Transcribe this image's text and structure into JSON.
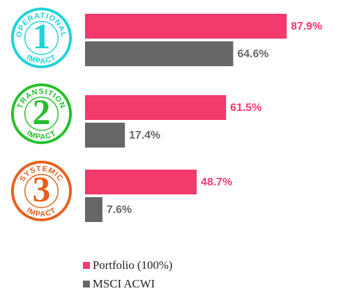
{
  "chart_data": {
    "type": "bar",
    "orientation": "horizontal",
    "categories": [
      "1",
      "2",
      "3"
    ],
    "category_top_labels": [
      "OPERATIONAL",
      "TRANSITION",
      "SYSTEMIC"
    ],
    "category_bottom_labels": [
      "IMPACT",
      "IMPACT",
      "IMPACT"
    ],
    "category_colors": [
      "#1fd3d8",
      "#25c02c",
      "#e8601c"
    ],
    "series": [
      {
        "name": "Portfolio (100%)",
        "color": "#f23a6c",
        "values": [
          87.9,
          61.5,
          48.7
        ],
        "value_labels": [
          "87.9%",
          "61.5%",
          "48.7%"
        ]
      },
      {
        "name": "MSCI ACWI",
        "color": "#666666",
        "values": [
          64.6,
          17.4,
          7.6
        ],
        "value_labels": [
          "64.6%",
          "17.4%",
          "7.6%"
        ]
      }
    ],
    "legend": "bottom"
  }
}
